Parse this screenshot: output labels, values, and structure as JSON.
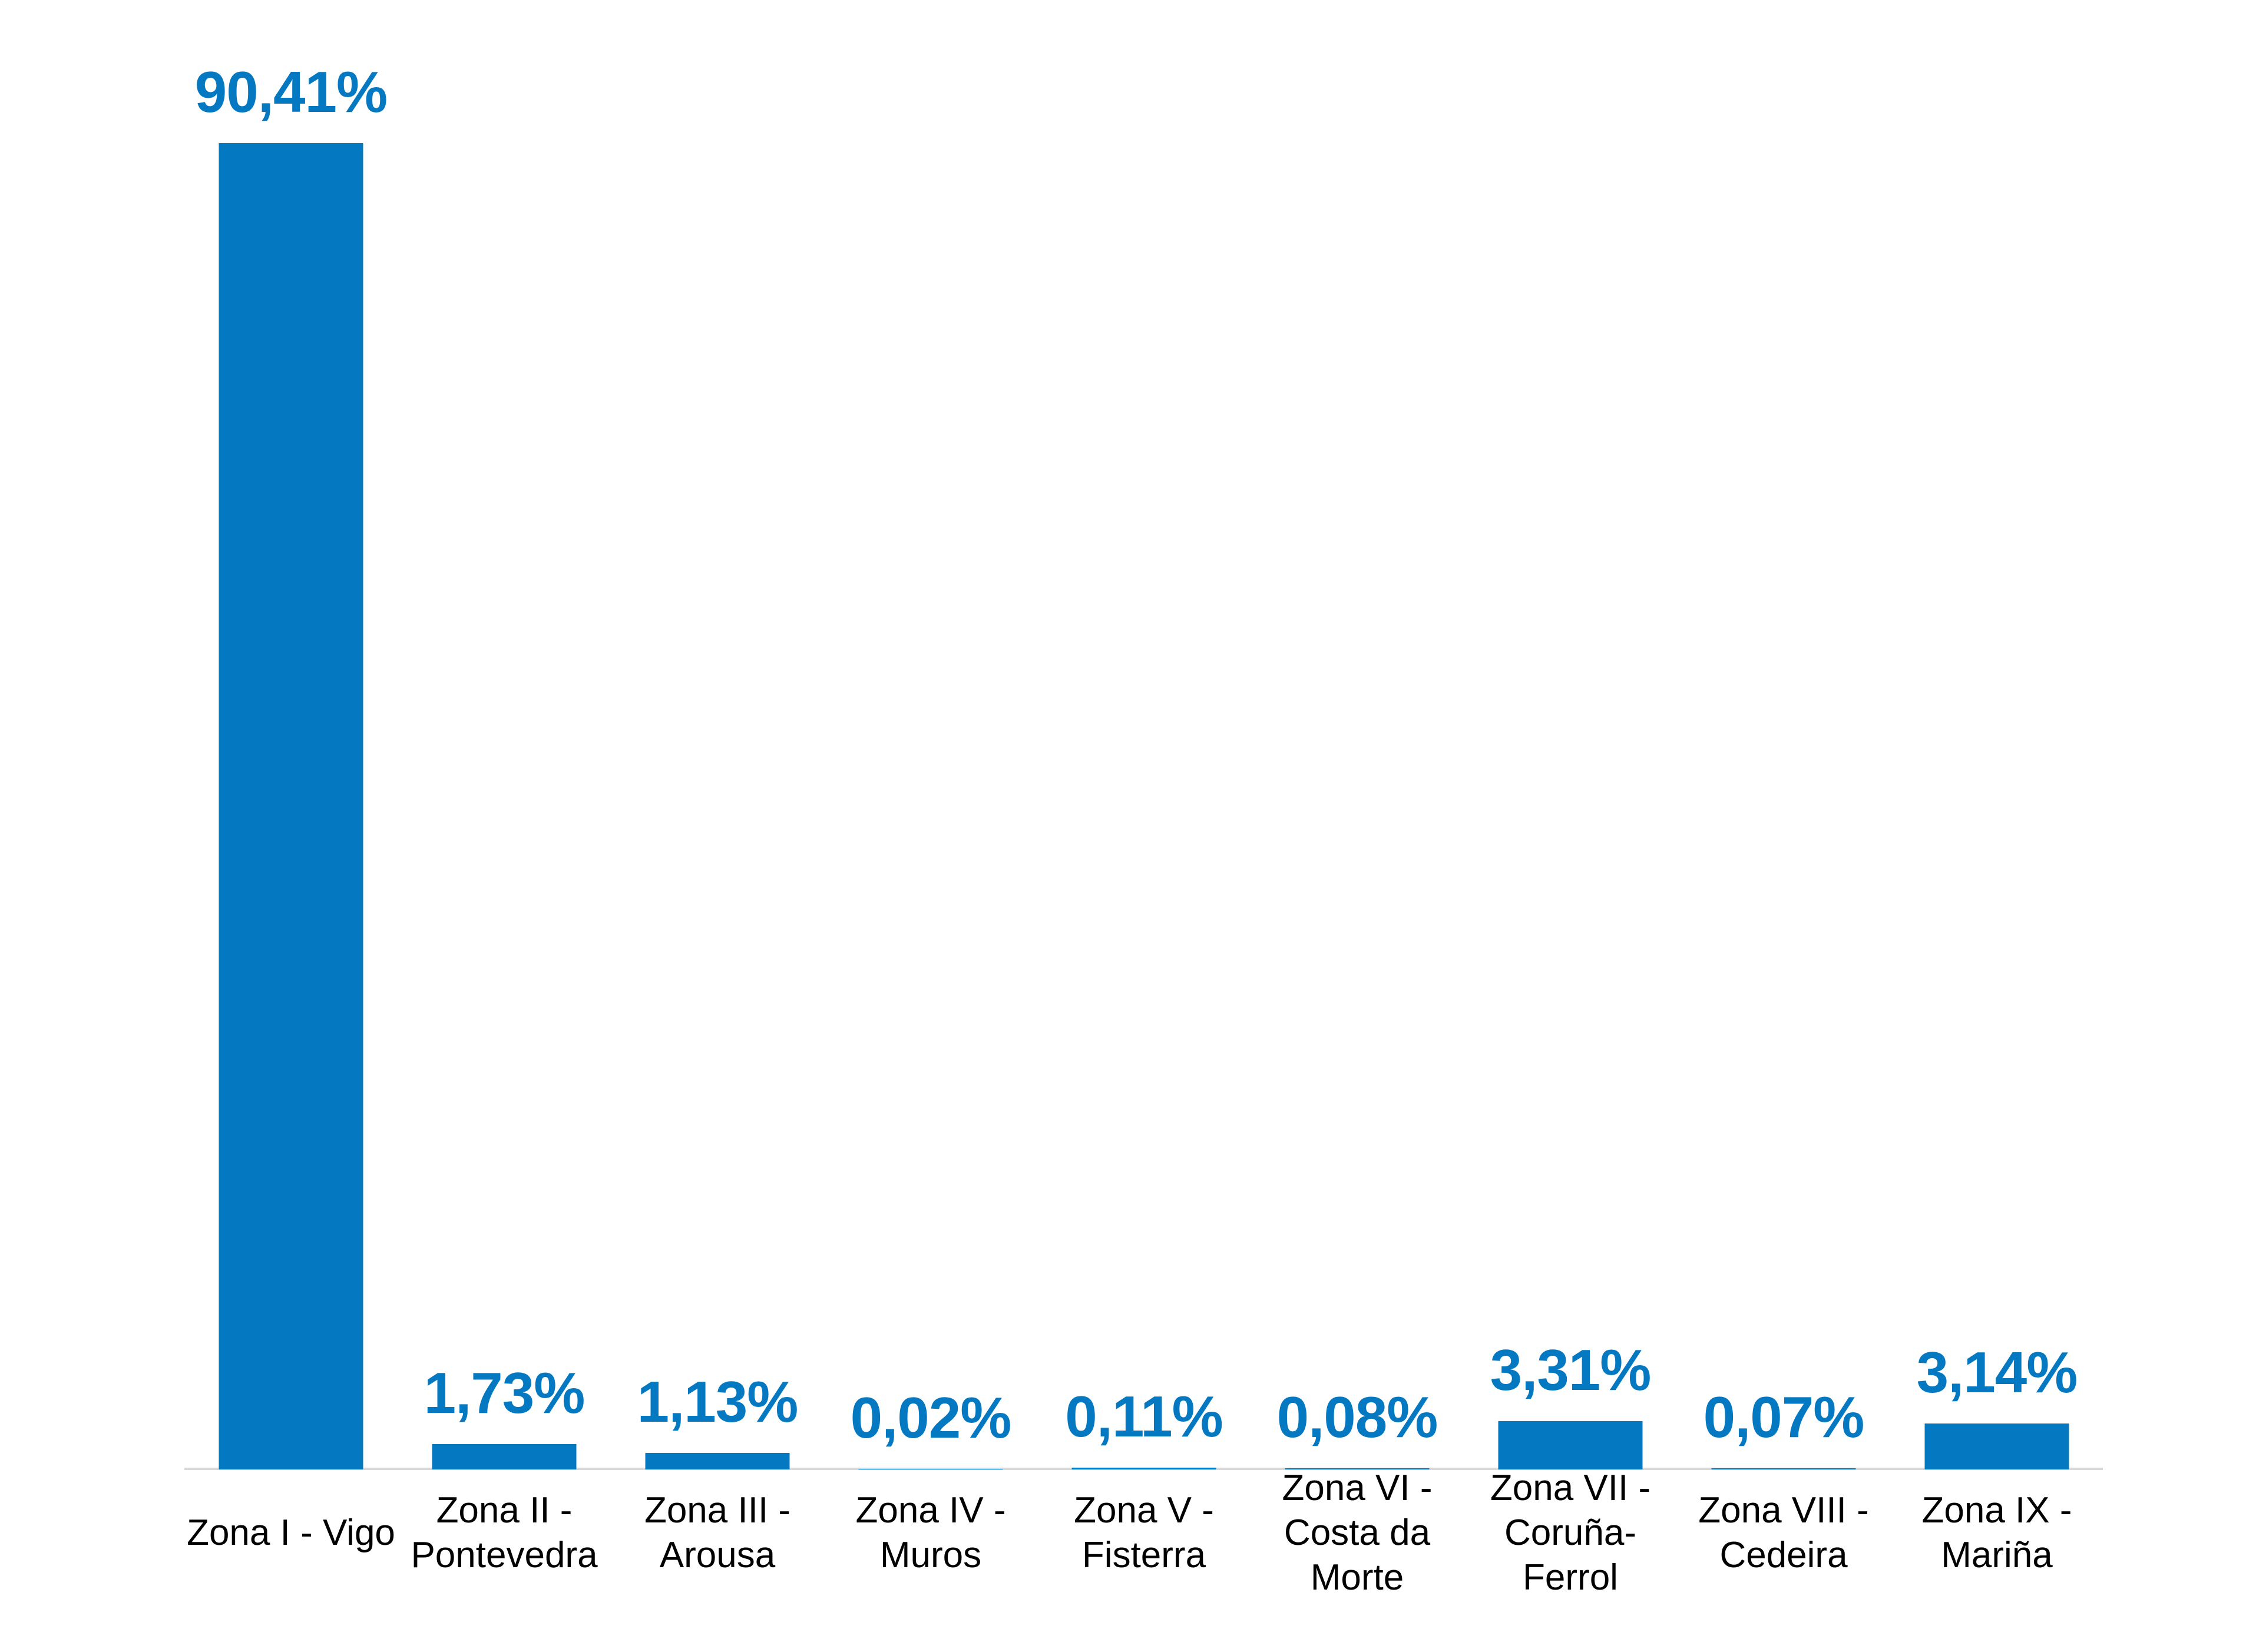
{
  "background_color": "#FFFFFF",
  "chart_data": {
    "type": "bar",
    "title": "",
    "xlabel": "",
    "ylabel": "",
    "ylim": [
      0,
      100
    ],
    "grid": false,
    "legend": false,
    "value_label_format": "percent-comma-decimal",
    "bar_color": "#0479C2",
    "value_label_color": "#0479C2",
    "category_label_color": "#000000",
    "axis_line_color": "#D8D8D8",
    "categories": [
      "Zona I - Vigo",
      "Zona II - Pontevedra",
      "Zona III - Arousa",
      "Zona IV - Muros",
      "Zona V - Fisterra",
      "Zona VI - Costa da Morte",
      "Zona VII - Coruña-Ferrol",
      "Zona VIII - Cedeira",
      "Zona IX - Mariña"
    ],
    "values": [
      90.41,
      1.73,
      1.13,
      0.02,
      0.11,
      0.08,
      3.31,
      0.07,
      3.14
    ],
    "value_labels": [
      "90,41%",
      "1,73%",
      "1,13%",
      "0,02%",
      "0,11%",
      "0,08%",
      "3,31%",
      "0,07%",
      "3,14%"
    ],
    "points": [
      {
        "value": 90.41,
        "label": "90,41%",
        "lines": [
          "Zona I - Vigo"
        ]
      },
      {
        "value": 1.73,
        "label": "1,73%",
        "lines": [
          "Zona II -",
          "Pontevedra"
        ]
      },
      {
        "value": 1.13,
        "label": "1,13%",
        "lines": [
          "Zona III -",
          "Arousa"
        ]
      },
      {
        "value": 0.02,
        "label": "0,02%",
        "lines": [
          "Zona IV -",
          "Muros"
        ]
      },
      {
        "value": 0.11,
        "label": "0,11%",
        "lines": [
          "Zona V -",
          "Fisterra"
        ]
      },
      {
        "value": 0.08,
        "label": "0,08%",
        "lines": [
          "Zona VI -",
          "Costa da",
          "Morte"
        ]
      },
      {
        "value": 3.31,
        "label": "3,31%",
        "lines": [
          "Zona VII -",
          "Coruña-",
          "Ferrol"
        ]
      },
      {
        "value": 0.07,
        "label": "0,07%",
        "lines": [
          "Zona VIII -",
          "Cedeira"
        ]
      },
      {
        "value": 3.14,
        "label": "3,14%",
        "lines": [
          "Zona IX -",
          "Mariña"
        ]
      }
    ]
  }
}
